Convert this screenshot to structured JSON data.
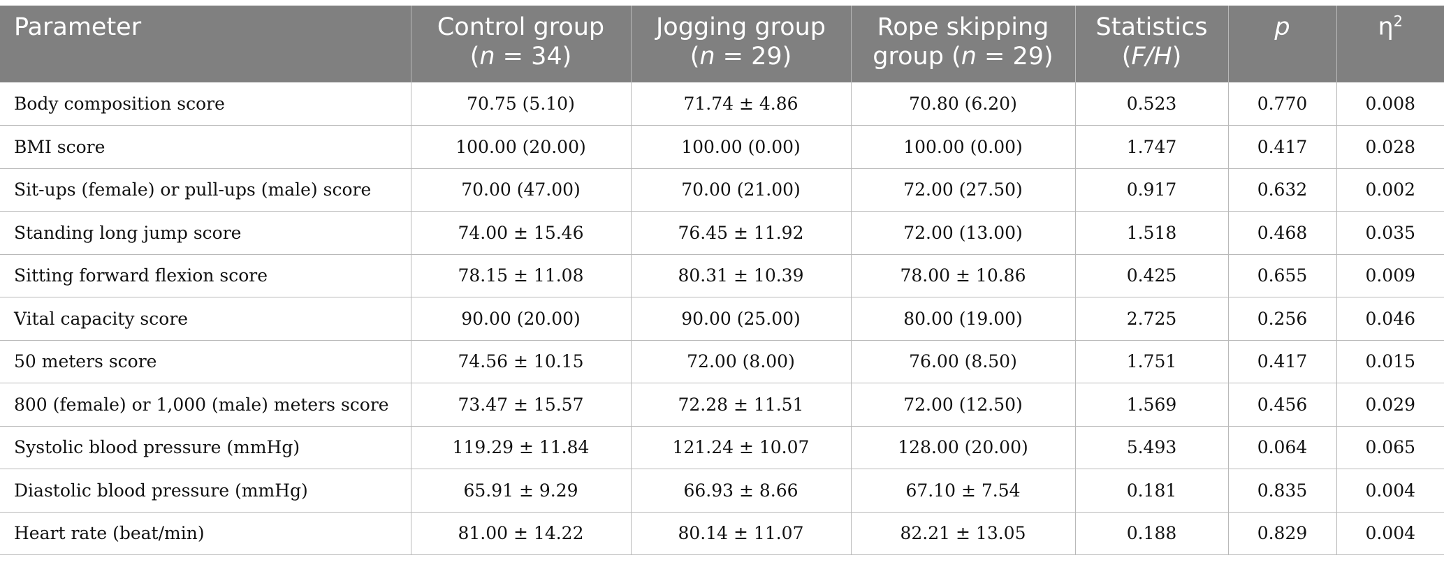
{
  "table": {
    "headers": [
      {
        "line1": "Parameter",
        "line2": ""
      },
      {
        "line1": "Control group",
        "line2_pre": "(",
        "line2_var": "n",
        "line2_post": " = 34)"
      },
      {
        "line1": "Jogging group",
        "line2_pre": "(",
        "line2_var": "n",
        "line2_post": " = 29)"
      },
      {
        "line1": "Rope skipping",
        "line2_pre": "group (",
        "line2_var": "n",
        "line2_post": " = 29)"
      },
      {
        "line1": "Statistics",
        "line2_pre": "(",
        "line2_var": "F/H",
        "line2_post": ")"
      },
      {
        "line1": "p"
      },
      {
        "line1": "η",
        "sup": "2"
      }
    ],
    "rows": [
      [
        "Body composition score",
        "70.75 (5.10)",
        "71.74 ± 4.86",
        "70.80 (6.20)",
        "0.523",
        "0.770",
        "0.008"
      ],
      [
        "BMI score",
        "100.00 (20.00)",
        "100.00 (0.00)",
        "100.00 (0.00)",
        "1.747",
        "0.417",
        "0.028"
      ],
      [
        "Sit-ups (female) or pull-ups (male) score",
        "70.00 (47.00)",
        "70.00 (21.00)",
        "72.00 (27.50)",
        "0.917",
        "0.632",
        "0.002"
      ],
      [
        "Standing long jump score",
        "74.00 ± 15.46",
        "76.45 ± 11.92",
        "72.00 (13.00)",
        "1.518",
        "0.468",
        "0.035"
      ],
      [
        "Sitting forward flexion score",
        "78.15 ± 11.08",
        "80.31 ± 10.39",
        "78.00 ± 10.86",
        "0.425",
        "0.655",
        "0.009"
      ],
      [
        "Vital capacity score",
        "90.00 (20.00)",
        "90.00 (25.00)",
        "80.00 (19.00)",
        "2.725",
        "0.256",
        "0.046"
      ],
      [
        "50 meters score",
        "74.56 ± 10.15",
        "72.00 (8.00)",
        "76.00 (8.50)",
        "1.751",
        "0.417",
        "0.015"
      ],
      [
        "800 (female) or 1,000 (male) meters score",
        "73.47 ± 15.57",
        "72.28 ± 11.51",
        "72.00 (12.50)",
        "1.569",
        "0.456",
        "0.029"
      ],
      [
        "Systolic blood pressure (mmHg)",
        "119.29 ± 11.84",
        "121.24 ± 10.07",
        "128.00 (20.00)",
        "5.493",
        "0.064",
        "0.065"
      ],
      [
        "Diastolic blood pressure (mmHg)",
        "65.91 ± 9.29",
        "66.93 ± 8.66",
        "67.10 ± 7.54",
        "0.181",
        "0.835",
        "0.004"
      ],
      [
        "Heart rate (beat/min)",
        "81.00 ± 14.22",
        "80.14 ± 11.07",
        "82.21 ± 13.05",
        "0.188",
        "0.829",
        "0.004"
      ]
    ]
  }
}
